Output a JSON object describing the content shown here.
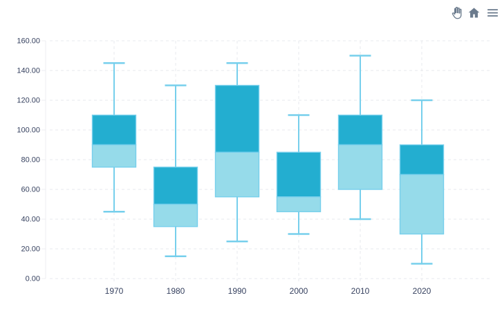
{
  "toolbar": {
    "icons": [
      {
        "name": "pan-hand-icon"
      },
      {
        "name": "home-reset-icon"
      },
      {
        "name": "menu-icon"
      }
    ],
    "icon_color": "#6b7b8d"
  },
  "chart_data": {
    "type": "boxplot",
    "title": "",
    "xlabel": "",
    "ylabel": "",
    "categories": [
      "1970",
      "1980",
      "1990",
      "2000",
      "2010",
      "2020"
    ],
    "series": [
      {
        "name": "box",
        "data": [
          {
            "x": "1970",
            "min": 45,
            "q1": 75,
            "median": 90,
            "q3": 110,
            "max": 145
          },
          {
            "x": "1980",
            "min": 15,
            "q1": 35,
            "median": 50,
            "q3": 75,
            "max": 130
          },
          {
            "x": "1990",
            "min": 25,
            "q1": 55,
            "median": 85,
            "q3": 130,
            "max": 145
          },
          {
            "x": "2000",
            "min": 30,
            "q1": 45,
            "median": 55,
            "q3": 85,
            "max": 110
          },
          {
            "x": "2010",
            "min": 40,
            "q1": 60,
            "median": 90,
            "q3": 110,
            "max": 150
          },
          {
            "x": "2020",
            "min": 10,
            "q1": 30,
            "median": 70,
            "q3": 90,
            "max": 120
          }
        ]
      }
    ],
    "ylim": [
      0,
      160
    ],
    "y_tick_values": [
      0,
      20,
      40,
      60,
      80,
      100,
      120,
      140,
      160
    ],
    "y_tick_labels": [
      "0.00",
      "20.00",
      "40.00",
      "60.00",
      "80.00",
      "100.00",
      "120.00",
      "140.00",
      "160.00"
    ],
    "grid": "dashed, horizontal and vertical",
    "legend": "none",
    "colors": {
      "box_upper": "#23aed0",
      "box_lower": "#96dbea",
      "whisker": "#76cfec",
      "box_border": "#76cfec",
      "grid": "#e7e9ec",
      "axis_line": "#eceef1",
      "tick_text": "#36415f"
    }
  }
}
